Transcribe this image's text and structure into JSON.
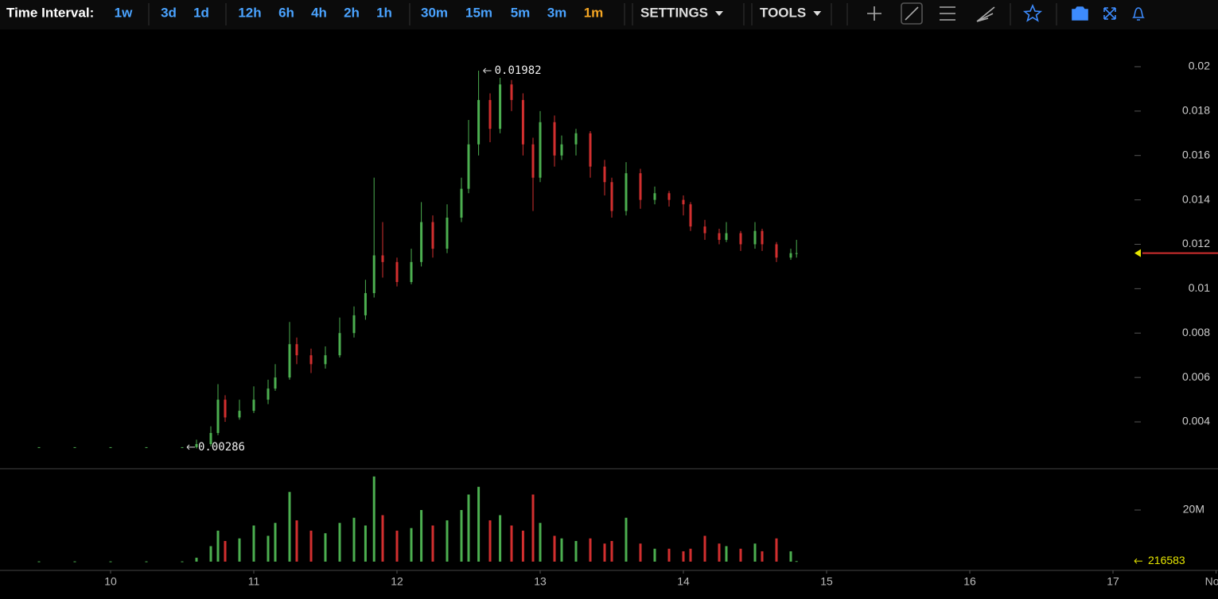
{
  "toolbar": {
    "label": "Time Interval:",
    "intervals": [
      "1w",
      "3d",
      "1d",
      "12h",
      "6h",
      "4h",
      "2h",
      "1h",
      "30m",
      "15m",
      "5m",
      "3m",
      "1m"
    ],
    "active": "1m",
    "menus": [
      "SETTINGS",
      "TOOLS"
    ]
  },
  "chart_data": [
    {
      "type": "candlestick",
      "up_color": "#4caf50",
      "down_color": "#d32f2f",
      "x": [
        9.5,
        9.75,
        10,
        10.25,
        10.5,
        10.6,
        10.7,
        10.75,
        10.8,
        10.9,
        11,
        11.1,
        11.15,
        11.25,
        11.3,
        11.4,
        11.5,
        11.6,
        11.7,
        11.78,
        11.84,
        11.9,
        12,
        12.1,
        12.17,
        12.25,
        12.35,
        12.45,
        12.5,
        12.57,
        12.65,
        12.72,
        12.8,
        12.88,
        12.95,
        13,
        13.1,
        13.15,
        13.25,
        13.35,
        13.45,
        13.5,
        13.6,
        13.7,
        13.8,
        13.9,
        14,
        14.05,
        14.15,
        14.25,
        14.3,
        14.4,
        14.5,
        14.55,
        14.65,
        14.75,
        14.79
      ],
      "open": [
        0.00286,
        0.00286,
        0.00286,
        0.00286,
        0.00286,
        0.00286,
        0.003,
        0.0035,
        0.005,
        0.0042,
        0.0045,
        0.005,
        0.0055,
        0.006,
        0.0075,
        0.007,
        0.0066,
        0.007,
        0.008,
        0.0088,
        0.0098,
        0.0115,
        0.0112,
        0.0103,
        0.0112,
        0.013,
        0.0118,
        0.0132,
        0.0145,
        0.0165,
        0.0185,
        0.0172,
        0.0192,
        0.0185,
        0.0165,
        0.015,
        0.0175,
        0.016,
        0.0165,
        0.017,
        0.0155,
        0.0148,
        0.0135,
        0.0152,
        0.014,
        0.0143,
        0.014,
        0.0138,
        0.0128,
        0.0125,
        0.0122,
        0.0125,
        0.012,
        0.0126,
        0.012,
        0.0114,
        0.0116
      ],
      "high": [
        0.00286,
        0.00286,
        0.00286,
        0.00286,
        0.00286,
        0.0032,
        0.0038,
        0.0057,
        0.0052,
        0.005,
        0.0056,
        0.0059,
        0.0066,
        0.0085,
        0.0078,
        0.0073,
        0.0074,
        0.0087,
        0.0092,
        0.0104,
        0.015,
        0.013,
        0.0114,
        0.0118,
        0.0139,
        0.0133,
        0.0138,
        0.015,
        0.0176,
        0.01982,
        0.0188,
        0.0195,
        0.0194,
        0.0188,
        0.0168,
        0.018,
        0.0178,
        0.0169,
        0.0172,
        0.0171,
        0.0158,
        0.015,
        0.0157,
        0.0154,
        0.0146,
        0.0144,
        0.0142,
        0.0139,
        0.0131,
        0.0127,
        0.013,
        0.0126,
        0.013,
        0.0127,
        0.0121,
        0.0118,
        0.0122
      ],
      "low": [
        0.00286,
        0.00286,
        0.00286,
        0.00286,
        0.00286,
        0.0028,
        0.0029,
        0.0034,
        0.004,
        0.0041,
        0.0044,
        0.0048,
        0.0054,
        0.0059,
        0.0066,
        0.0062,
        0.0064,
        0.0069,
        0.0078,
        0.0086,
        0.0096,
        0.0105,
        0.0101,
        0.0102,
        0.011,
        0.0114,
        0.0116,
        0.013,
        0.0143,
        0.016,
        0.0166,
        0.017,
        0.018,
        0.016,
        0.0135,
        0.0148,
        0.0155,
        0.0158,
        0.016,
        0.015,
        0.0142,
        0.0132,
        0.0133,
        0.0136,
        0.0138,
        0.0137,
        0.0133,
        0.0126,
        0.0122,
        0.012,
        0.0121,
        0.0117,
        0.0118,
        0.0117,
        0.0112,
        0.0113,
        0.0114
      ],
      "close": [
        0.00286,
        0.00286,
        0.00286,
        0.00286,
        0.00286,
        0.003,
        0.0035,
        0.005,
        0.0042,
        0.0045,
        0.005,
        0.0055,
        0.006,
        0.0075,
        0.007,
        0.0066,
        0.007,
        0.008,
        0.0088,
        0.0098,
        0.0115,
        0.0112,
        0.0103,
        0.0112,
        0.013,
        0.0118,
        0.0132,
        0.0145,
        0.0165,
        0.0185,
        0.0172,
        0.0192,
        0.0185,
        0.0165,
        0.015,
        0.0175,
        0.016,
        0.0165,
        0.017,
        0.0155,
        0.0148,
        0.0135,
        0.0152,
        0.014,
        0.0143,
        0.014,
        0.0138,
        0.0128,
        0.0125,
        0.0122,
        0.0125,
        0.012,
        0.0126,
        0.012,
        0.0114,
        0.0116,
        0.0116
      ],
      "xlim": [
        9.2278,
        17.7333
      ],
      "ylim": [
        0.00189,
        0.02168
      ],
      "yticks": [
        0.004,
        0.006,
        0.008,
        0.01,
        0.012,
        0.014,
        0.016,
        0.018,
        0.02
      ],
      "annotations": [
        {
          "x": 12.57,
          "value": 0.01982
        },
        {
          "x": 10.5,
          "value": 0.00286
        }
      ]
    },
    {
      "type": "bar",
      "x": [
        9.5,
        9.75,
        10,
        10.25,
        10.5,
        10.6,
        10.7,
        10.75,
        10.8,
        10.9,
        11,
        11.1,
        11.15,
        11.25,
        11.3,
        11.4,
        11.5,
        11.6,
        11.7,
        11.78,
        11.84,
        11.9,
        12,
        12.1,
        12.17,
        12.25,
        12.35,
        12.45,
        12.5,
        12.57,
        12.65,
        12.72,
        12.8,
        12.88,
        12.95,
        13,
        13.1,
        13.15,
        13.25,
        13.35,
        13.45,
        13.5,
        13.6,
        13.7,
        13.8,
        13.9,
        14,
        14.05,
        14.15,
        14.25,
        14.3,
        14.4,
        14.5,
        14.55,
        14.65,
        14.75,
        14.79
      ],
      "values": [
        100000,
        100000,
        100000,
        100000,
        100000,
        1500000,
        6000000,
        12000000,
        8000000,
        9000000,
        14000000,
        10000000,
        15000000,
        27000000,
        16000000,
        12000000,
        11000000,
        15000000,
        17000000,
        14000000,
        33000000,
        18000000,
        12000000,
        13000000,
        20000000,
        14000000,
        16000000,
        20000000,
        26000000,
        29000000,
        16000000,
        18000000,
        14000000,
        12000000,
        26000000,
        15000000,
        10000000,
        9000000,
        8000000,
        9000000,
        7000000,
        8000000,
        17000000,
        7000000,
        5000000,
        5000000,
        4000000,
        5000000,
        10000000,
        7000000,
        6000000,
        5000000,
        7000000,
        4000000,
        9000000,
        4000000,
        216583
      ],
      "xlim": [
        9.2278,
        17.7333
      ],
      "ylim": [
        -3400000,
        35700000
      ],
      "yticks": [
        0,
        {
          "value": 20000000,
          "label": "20M"
        }
      ],
      "xticks": [
        10,
        11,
        12,
        13,
        14,
        15,
        16,
        17,
        {
          "value": 17.72,
          "label": "Now"
        }
      ],
      "last_value": 216583
    }
  ]
}
